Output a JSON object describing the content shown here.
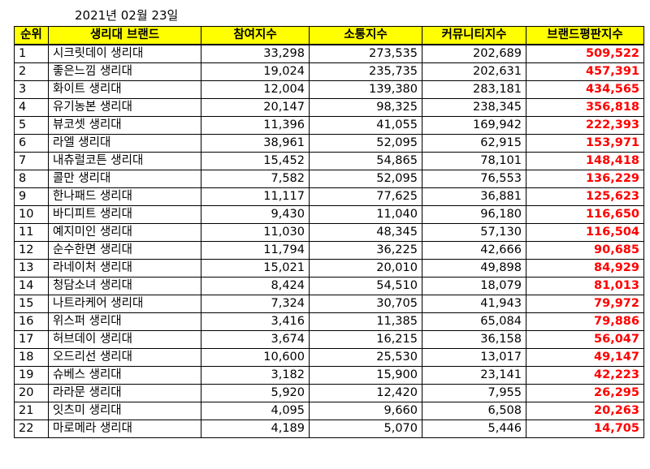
{
  "date": "2021년 02월 23일",
  "colors": {
    "header_bg": "#ffff00",
    "reputation_text": "#ff0000",
    "border": "#000000"
  },
  "headers": {
    "rank": "순위",
    "brand": "생리대 브랜드",
    "participation": "참여지수",
    "communication": "소통지수",
    "community": "커뮤니티지수",
    "reputation": "브랜드평판지수"
  },
  "rows": [
    {
      "rank": "1",
      "brand": "시크릿데이 생리대",
      "participation": "33,298",
      "communication": "273,535",
      "community": "202,689",
      "reputation": "509,522"
    },
    {
      "rank": "2",
      "brand": "좋은느낌 생리대",
      "participation": "19,024",
      "communication": "235,735",
      "community": "202,631",
      "reputation": "457,391"
    },
    {
      "rank": "3",
      "brand": "화이트 생리대",
      "participation": "12,004",
      "communication": "139,380",
      "community": "283,181",
      "reputation": "434,565"
    },
    {
      "rank": "4",
      "brand": "유기농본 생리대",
      "participation": "20,147",
      "communication": "98,325",
      "community": "238,345",
      "reputation": "356,818"
    },
    {
      "rank": "5",
      "brand": "뷰코셋 생리대",
      "participation": "11,396",
      "communication": "41,055",
      "community": "169,942",
      "reputation": "222,393"
    },
    {
      "rank": "6",
      "brand": "라엘 생리대",
      "participation": "38,961",
      "communication": "52,095",
      "community": "62,915",
      "reputation": "153,971"
    },
    {
      "rank": "7",
      "brand": "내츄럴코튼 생리대",
      "participation": "15,452",
      "communication": "54,865",
      "community": "78,101",
      "reputation": "148,418"
    },
    {
      "rank": "8",
      "brand": "콜만 생리대",
      "participation": "7,582",
      "communication": "52,095",
      "community": "76,553",
      "reputation": "136,229"
    },
    {
      "rank": "9",
      "brand": "한나패드 생리대",
      "participation": "11,117",
      "communication": "77,625",
      "community": "36,881",
      "reputation": "125,623"
    },
    {
      "rank": "10",
      "brand": "바디피트 생리대",
      "participation": "9,430",
      "communication": "11,040",
      "community": "96,180",
      "reputation": "116,650"
    },
    {
      "rank": "11",
      "brand": "예지미인 생리대",
      "participation": "11,030",
      "communication": "48,345",
      "community": "57,130",
      "reputation": "116,504"
    },
    {
      "rank": "12",
      "brand": "순수한면 생리대",
      "participation": "11,794",
      "communication": "36,225",
      "community": "42,666",
      "reputation": "90,685"
    },
    {
      "rank": "13",
      "brand": "라네이처 생리대",
      "participation": "15,021",
      "communication": "20,010",
      "community": "49,898",
      "reputation": "84,929"
    },
    {
      "rank": "14",
      "brand": "청담소녀 생리대",
      "participation": "8,424",
      "communication": "54,510",
      "community": "18,079",
      "reputation": "81,013"
    },
    {
      "rank": "15",
      "brand": "나트라케어 생리대",
      "participation": "7,324",
      "communication": "30,705",
      "community": "41,943",
      "reputation": "79,972"
    },
    {
      "rank": "16",
      "brand": "위스퍼 생리대",
      "participation": "3,416",
      "communication": "11,385",
      "community": "65,084",
      "reputation": "79,886"
    },
    {
      "rank": "17",
      "brand": "허브데이 생리대",
      "participation": "3,674",
      "communication": "16,215",
      "community": "36,158",
      "reputation": "56,047"
    },
    {
      "rank": "18",
      "brand": "오드리선 생리대",
      "participation": "10,600",
      "communication": "25,530",
      "community": "13,017",
      "reputation": "49,147"
    },
    {
      "rank": "19",
      "brand": "슈베스 생리대",
      "participation": "3,182",
      "communication": "15,900",
      "community": "23,141",
      "reputation": "42,223"
    },
    {
      "rank": "20",
      "brand": "라라문 생리대",
      "participation": "5,920",
      "communication": "12,420",
      "community": "7,955",
      "reputation": "26,295"
    },
    {
      "rank": "21",
      "brand": "잇츠미 생리대",
      "participation": "4,095",
      "communication": "9,660",
      "community": "6,508",
      "reputation": "20,263"
    },
    {
      "rank": "22",
      "brand": "마로메라 생리대",
      "participation": "4,189",
      "communication": "5,070",
      "community": "5,446",
      "reputation": "14,705"
    }
  ]
}
